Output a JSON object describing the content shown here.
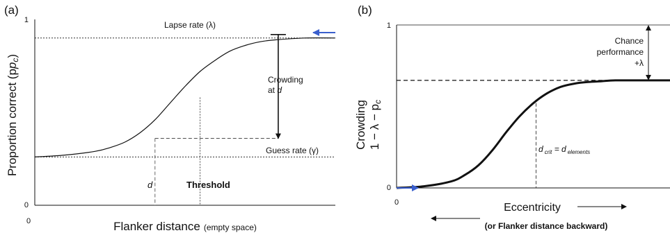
{
  "chart_data": [
    {
      "panel_label": "(a)",
      "type": "line",
      "title": "",
      "ylabel": "Proportion correct (p",
      "ylabel_sub": "c",
      "ylabel_close": ")",
      "xlabel": "Flanker distance",
      "xlabel_small": "(empty space)",
      "ylim": [
        0,
        1
      ],
      "xlim": [
        0,
        1
      ],
      "y_ticks": [
        "0",
        "1"
      ],
      "x_origin_label": "0",
      "series": [
        {
          "x": [
            0.0,
            0.1,
            0.2,
            0.25,
            0.3,
            0.35,
            0.4,
            0.45,
            0.5,
            0.55,
            0.6,
            0.65,
            0.7,
            0.75,
            0.8,
            0.9,
            1.0
          ],
          "y": [
            0.26,
            0.27,
            0.29,
            0.31,
            0.34,
            0.39,
            0.46,
            0.55,
            0.64,
            0.72,
            0.78,
            0.83,
            0.86,
            0.88,
            0.89,
            0.9,
            0.9
          ]
        }
      ],
      "lapse_level": 0.9,
      "guess_level": 0.26,
      "d_x": 0.4,
      "d_y": 0.36,
      "threshold_x": 0.55,
      "threshold_y": 0.58,
      "crowding_x": 0.81,
      "annotations": {
        "lapse": "Lapse rate (λ)",
        "guess": "Guess rate (γ)",
        "crowding_line1": "Crowding",
        "crowding_line2": "at",
        "crowding_var": "d",
        "d_label": "d",
        "threshold": "Threshold"
      },
      "arrow_color": "#3a5fcd"
    },
    {
      "panel_label": "(b)",
      "type": "line",
      "title": "",
      "ylabel_line1": "Crowding",
      "ylabel_line2": "1 − λ − p",
      "ylabel_sub": "c",
      "xlabel": "Eccentricity",
      "xlabel2": "(or Flanker distance backward)",
      "ylim": [
        0,
        1
      ],
      "xlim": [
        0,
        1
      ],
      "y_ticks": [
        "0",
        "1"
      ],
      "x_origin_label": "0",
      "series": [
        {
          "x": [
            0.0,
            0.1,
            0.2,
            0.25,
            0.3,
            0.35,
            0.4,
            0.45,
            0.5,
            0.55,
            0.6,
            0.65,
            0.7,
            0.75,
            0.8,
            0.9,
            1.0
          ],
          "y": [
            0.0,
            0.01,
            0.04,
            0.08,
            0.14,
            0.23,
            0.34,
            0.44,
            0.52,
            0.58,
            0.62,
            0.64,
            0.65,
            0.655,
            0.66,
            0.66,
            0.66
          ]
        }
      ],
      "plateau_level": 0.66,
      "dcrit_x": 0.51,
      "annotations": {
        "chance_line1": "Chance",
        "chance_line2": "performance",
        "chance_line3": "+λ",
        "dcrit_main": "d",
        "dcrit_sub": "crit",
        "dcrit_eq": " = d",
        "dcrit_sub2": "elements"
      },
      "arrow_color": "#3a5fcd"
    }
  ]
}
